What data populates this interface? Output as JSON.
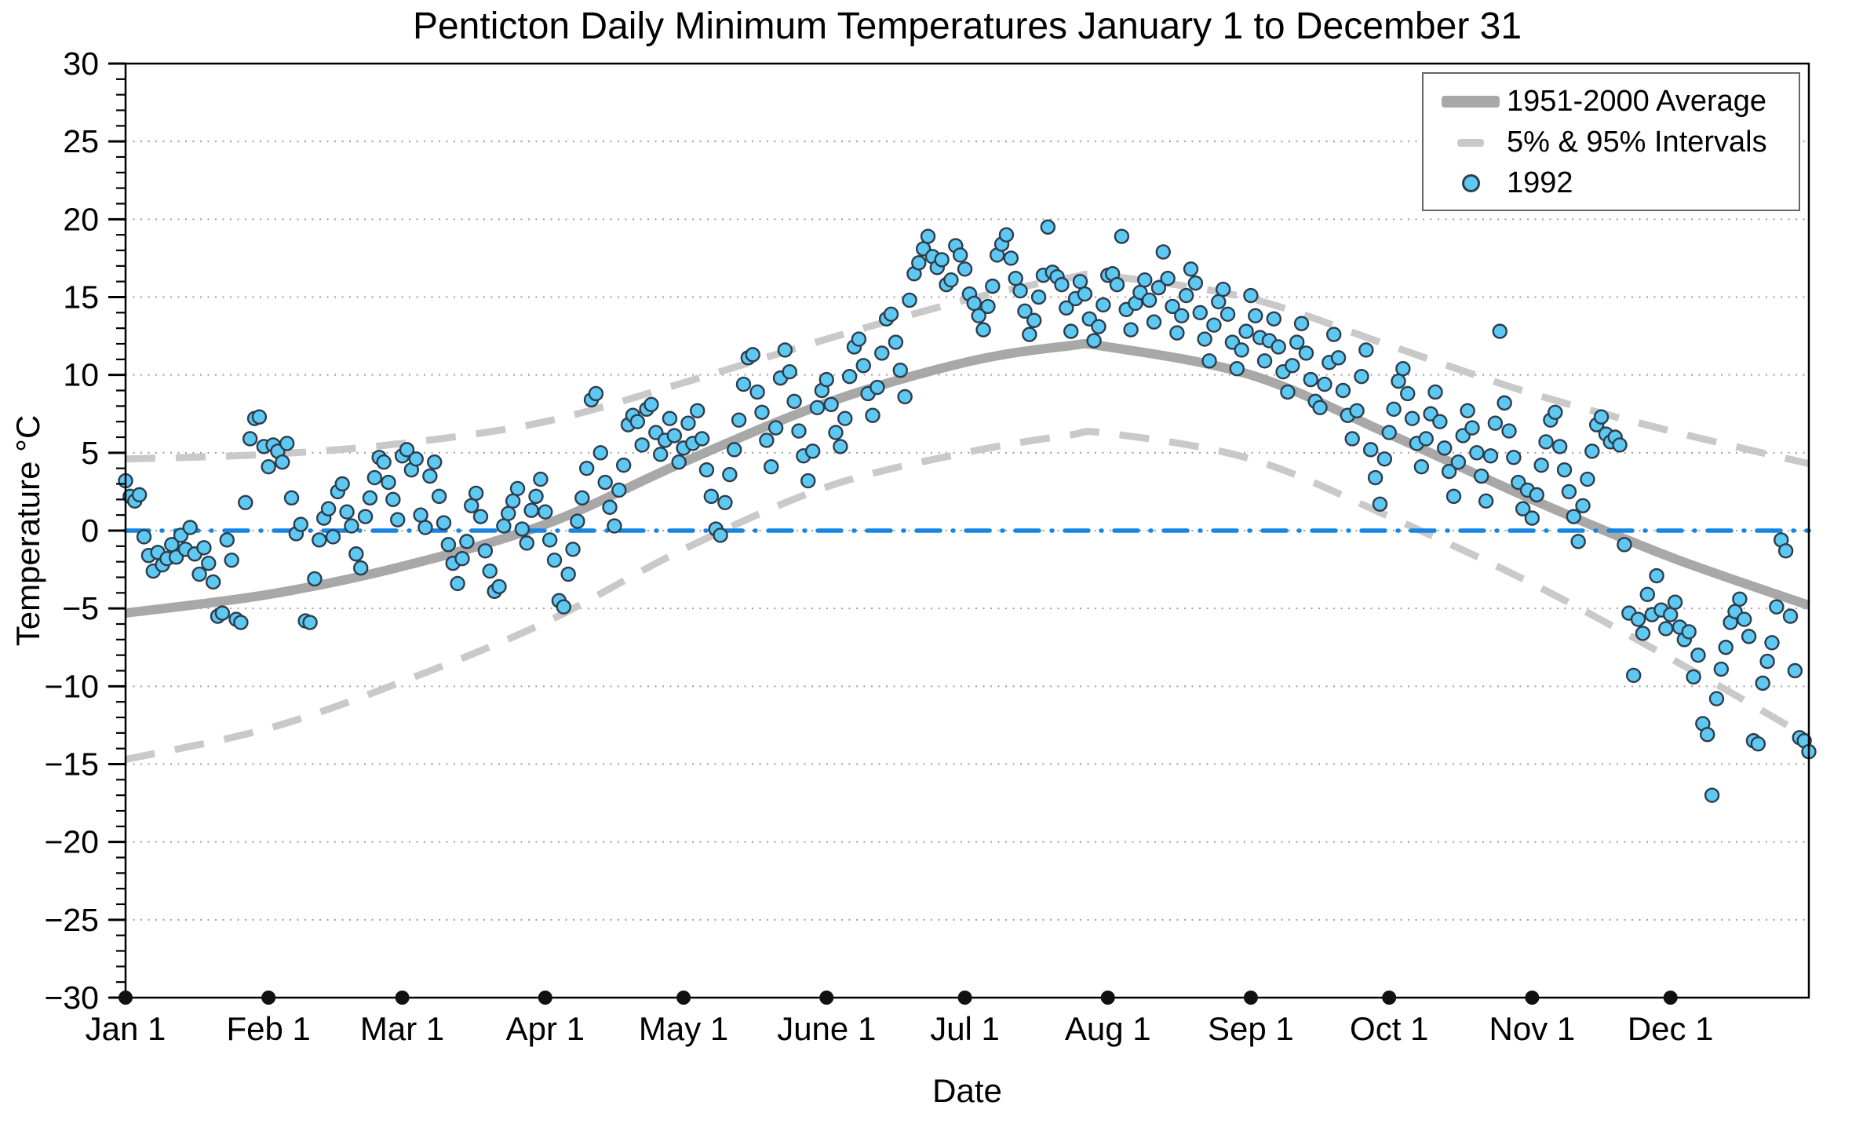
{
  "title": "Penticton Daily Minimum Temperatures January 1 to December 31",
  "axes": {
    "xlabel": "Date",
    "ylabel": "Temperature °C",
    "ylim": [
      -30,
      30
    ],
    "yticks": [
      {
        "v": -30,
        "label": "−30"
      },
      {
        "v": -25,
        "label": "−25"
      },
      {
        "v": -20,
        "label": "−20"
      },
      {
        "v": -15,
        "label": "−15"
      },
      {
        "v": -10,
        "label": "−10"
      },
      {
        "v": -5,
        "label": "−5"
      },
      {
        "v": 0,
        "label": "0"
      },
      {
        "v": 5,
        "label": "5"
      },
      {
        "v": 10,
        "label": "10"
      },
      {
        "v": 15,
        "label": "15"
      },
      {
        "v": 20,
        "label": "20"
      },
      {
        "v": 25,
        "label": "25"
      },
      {
        "v": 30,
        "label": "30"
      }
    ],
    "xticks": [
      {
        "day": 1,
        "label": "Jan 1"
      },
      {
        "day": 32,
        "label": "Feb 1"
      },
      {
        "day": 61,
        "label": "Mar 1"
      },
      {
        "day": 92,
        "label": "Apr 1"
      },
      {
        "day": 122,
        "label": "May 1"
      },
      {
        "day": 153,
        "label": "June 1"
      },
      {
        "day": 183,
        "label": "Jul 1"
      },
      {
        "day": 214,
        "label": "Aug 1"
      },
      {
        "day": 245,
        "label": "Sep 1"
      },
      {
        "day": 275,
        "label": "Oct 1"
      },
      {
        "day": 306,
        "label": "Nov 1"
      },
      {
        "day": 336,
        "label": "Dec 1"
      }
    ]
  },
  "legend": {
    "items": [
      {
        "label": "1951-2000 Average",
        "swatch": "thick-line"
      },
      {
        "label": "5% & 95% Intervals",
        "swatch": "dashed-line"
      },
      {
        "label": "1992",
        "swatch": "marker"
      }
    ]
  },
  "colors": {
    "average_line": "#a8a8a8",
    "interval_line": "#c9c9c9",
    "scatter_fill": "#5dc8f1",
    "scatter_edge": "#2d3c4b",
    "zero_line": "#1786e3",
    "grid": "#9e9e9e",
    "frame": "#000000",
    "month_dot": "#111111"
  },
  "chart_data": {
    "type": "scatter",
    "title": "Penticton Daily Minimum Temperatures January 1 to December 31",
    "xlabel": "Date",
    "ylabel": "Temperature °C",
    "ylim": [
      -30,
      30
    ],
    "x_range_days": [
      1,
      366
    ],
    "grid": "dotted horizontal every 5 degrees",
    "legend_position": "upper right",
    "zero_reference_line": 0,
    "series": [
      {
        "name": "1951-2000 Average",
        "type": "line",
        "points": [
          [
            1,
            -5.3
          ],
          [
            32,
            -4.1
          ],
          [
            61,
            -2.3
          ],
          [
            92,
            0.4
          ],
          [
            122,
            4.4
          ],
          [
            153,
            8.2
          ],
          [
            183,
            10.8
          ],
          [
            205,
            11.85
          ],
          [
            214,
            11.8
          ],
          [
            245,
            10.0
          ],
          [
            275,
            6.2
          ],
          [
            306,
            2.0
          ],
          [
            336,
            -1.7
          ],
          [
            366,
            -4.8
          ]
        ]
      },
      {
        "name": "95% Interval",
        "type": "dashed_line",
        "points": [
          [
            1,
            4.6
          ],
          [
            32,
            4.9
          ],
          [
            61,
            5.6
          ],
          [
            92,
            7.0
          ],
          [
            122,
            9.5
          ],
          [
            153,
            12.3
          ],
          [
            183,
            14.8
          ],
          [
            205,
            16.2
          ],
          [
            214,
            16.35
          ],
          [
            245,
            14.9
          ],
          [
            275,
            11.9
          ],
          [
            306,
            8.8
          ],
          [
            336,
            6.4
          ],
          [
            366,
            4.3
          ]
        ]
      },
      {
        "name": "5% Interval",
        "type": "dashed_line",
        "points": [
          [
            1,
            -14.7
          ],
          [
            32,
            -12.7
          ],
          [
            61,
            -9.7
          ],
          [
            92,
            -5.9
          ],
          [
            122,
            -1.2
          ],
          [
            153,
            2.8
          ],
          [
            183,
            5.0
          ],
          [
            205,
            6.1
          ],
          [
            214,
            6.25
          ],
          [
            245,
            4.6
          ],
          [
            275,
            0.9
          ],
          [
            306,
            -3.4
          ],
          [
            336,
            -8.2
          ],
          [
            366,
            -13.3
          ]
        ]
      },
      {
        "name": "1992",
        "type": "scatter",
        "x_start_day": 1,
        "values": [
          3.2,
          2.2,
          1.9,
          2.3,
          -0.4,
          -1.6,
          -2.6,
          -1.4,
          -2.2,
          -1.8,
          -0.9,
          -1.7,
          -0.3,
          -1.2,
          0.2,
          -1.5,
          -2.8,
          -1.1,
          -2.1,
          -3.3,
          -5.5,
          -5.3,
          -0.6,
          -1.9,
          -5.7,
          -5.9,
          1.8,
          5.9,
          7.2,
          7.3,
          5.4,
          4.1,
          5.5,
          5.1,
          4.4,
          5.6,
          2.1,
          -0.2,
          0.4,
          -5.8,
          -5.9,
          -3.1,
          -0.6,
          0.8,
          1.4,
          -0.4,
          2.5,
          3.0,
          1.2,
          0.3,
          -1.5,
          -2.4,
          0.9,
          2.1,
          3.4,
          4.7,
          4.4,
          3.1,
          2.0,
          0.7,
          4.8,
          5.2,
          3.9,
          4.6,
          1.0,
          0.2,
          3.5,
          4.4,
          2.2,
          0.5,
          -0.9,
          -2.1,
          -3.4,
          -1.8,
          -0.7,
          1.6,
          2.4,
          0.9,
          -1.3,
          -2.6,
          -3.9,
          -3.6,
          0.3,
          1.1,
          1.9,
          2.7,
          0.1,
          -0.8,
          1.3,
          2.2,
          3.3,
          1.2,
          -0.6,
          -1.9,
          -4.5,
          -4.9,
          -2.8,
          -1.2,
          0.6,
          2.1,
          4.0,
          8.4,
          8.8,
          5.0,
          3.1,
          1.5,
          0.3,
          2.6,
          4.2,
          6.8,
          7.4,
          7.0,
          5.5,
          7.8,
          8.1,
          6.3,
          4.9,
          5.8,
          7.2,
          6.1,
          4.4,
          5.3,
          6.9,
          5.6,
          7.7,
          5.9,
          3.9,
          2.2,
          0.1,
          -0.3,
          1.8,
          3.6,
          5.2,
          7.1,
          9.4,
          11.1,
          11.3,
          8.9,
          7.6,
          5.8,
          4.1,
          6.6,
          9.8,
          11.6,
          10.2,
          8.3,
          6.4,
          4.8,
          3.2,
          5.1,
          7.9,
          9.0,
          9.7,
          8.1,
          6.3,
          5.4,
          7.2,
          9.9,
          11.8,
          12.3,
          10.6,
          8.8,
          7.4,
          9.2,
          11.4,
          13.6,
          13.9,
          12.1,
          10.3,
          8.6,
          14.8,
          16.5,
          17.2,
          18.1,
          18.9,
          17.6,
          16.9,
          17.4,
          15.8,
          16.1,
          18.3,
          17.7,
          16.8,
          15.2,
          14.6,
          13.8,
          12.9,
          14.4,
          15.7,
          17.7,
          18.4,
          19.0,
          17.5,
          16.2,
          15.4,
          14.1,
          12.6,
          13.5,
          15.0,
          16.4,
          19.5,
          16.6,
          16.3,
          15.8,
          14.3,
          12.8,
          14.9,
          16.0,
          15.2,
          13.6,
          12.2,
          13.1,
          14.5,
          16.4,
          16.5,
          15.8,
          18.9,
          14.2,
          12.9,
          14.6,
          15.3,
          16.1,
          14.8,
          13.4,
          15.6,
          17.9,
          16.2,
          14.4,
          12.7,
          13.8,
          15.1,
          16.8,
          15.9,
          14.0,
          12.3,
          10.9,
          13.2,
          14.7,
          15.5,
          13.9,
          12.1,
          10.4,
          11.6,
          12.8,
          15.1,
          13.8,
          12.4,
          10.9,
          12.2,
          13.6,
          11.8,
          10.2,
          8.9,
          10.6,
          12.1,
          13.3,
          11.4,
          9.7,
          8.3,
          7.9,
          9.4,
          10.8,
          12.6,
          11.1,
          9.0,
          7.4,
          5.9,
          7.7,
          9.9,
          11.6,
          5.2,
          3.4,
          1.7,
          4.6,
          6.3,
          7.8,
          9.6,
          10.4,
          8.8,
          7.2,
          5.6,
          4.1,
          5.9,
          7.5,
          8.9,
          7.0,
          5.3,
          3.8,
          2.2,
          4.4,
          6.1,
          7.7,
          6.6,
          5.0,
          3.5,
          1.9,
          4.8,
          6.9,
          12.8,
          8.2,
          6.4,
          4.7,
          3.1,
          1.4,
          2.6,
          0.8,
          2.3,
          4.2,
          5.7,
          7.1,
          7.6,
          5.4,
          3.9,
          2.5,
          0.9,
          -0.7,
          1.6,
          3.3,
          5.1,
          6.8,
          7.3,
          6.2,
          5.7,
          6.0,
          5.5,
          -0.9,
          -5.3,
          -9.3,
          -5.7,
          -6.6,
          -4.1,
          -5.4,
          -2.9,
          -5.1,
          -6.3,
          -5.4,
          -4.6,
          -6.2,
          -7.0,
          -6.5,
          -9.4,
          -8.0,
          -12.4,
          -13.1,
          -17.0,
          -10.8,
          -8.9,
          -7.5,
          -5.9,
          -5.2,
          -4.4,
          -5.7,
          -6.8,
          -13.5,
          -13.7,
          -9.8,
          -8.4,
          -7.2,
          -4.9,
          -0.6,
          -1.3,
          -5.5,
          -9.0,
          -13.3,
          -13.5,
          -14.2
        ]
      }
    ]
  }
}
